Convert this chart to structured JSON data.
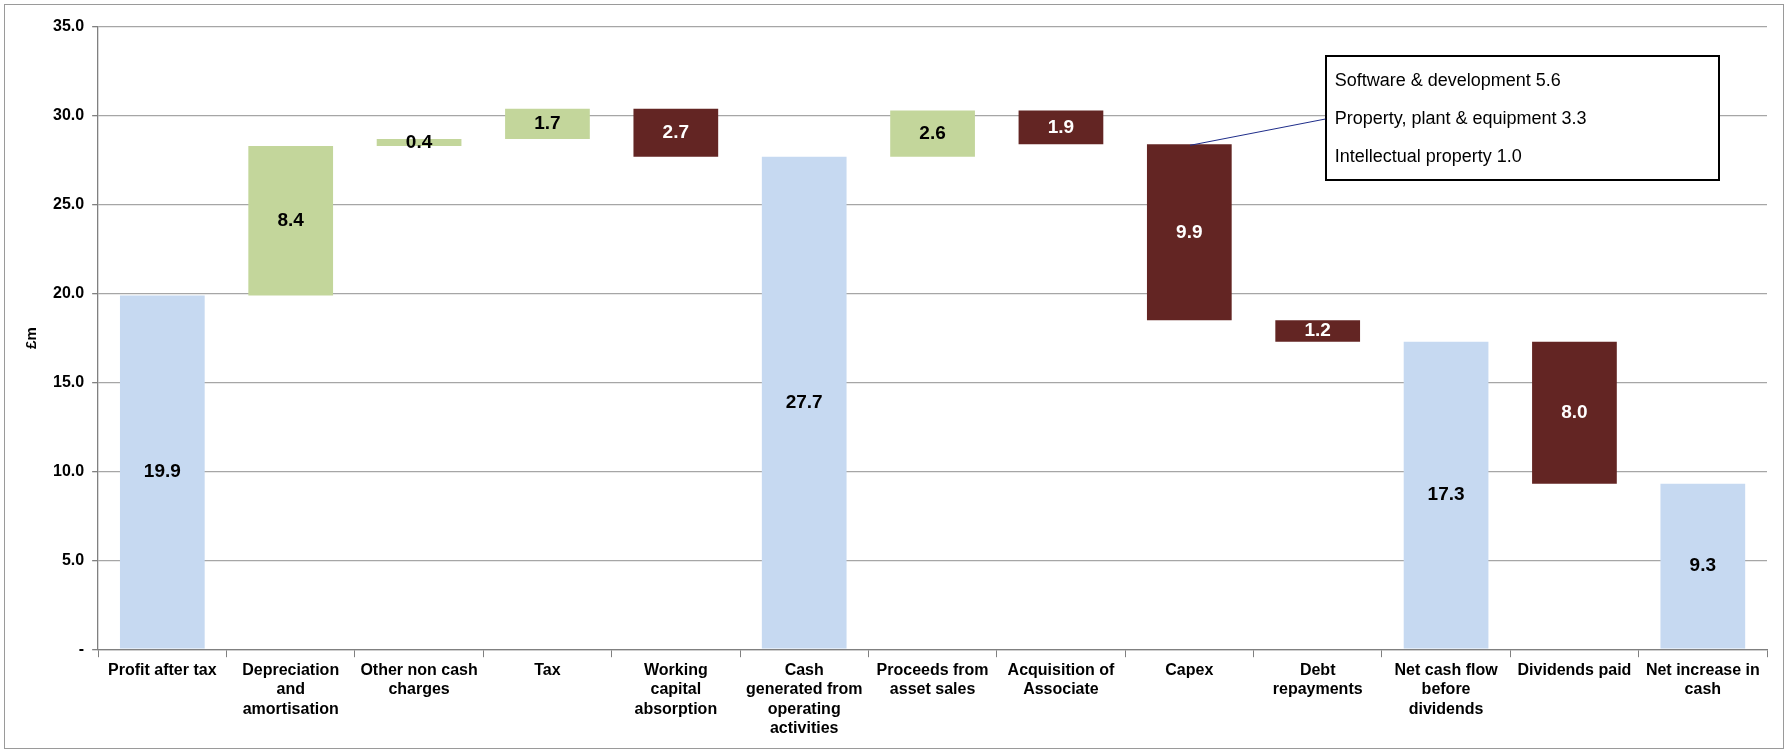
{
  "chart_data": {
    "type": "bar",
    "ylabel": "£m",
    "categories": [
      "Profit after tax",
      "Depreciation and amortisation",
      "Other non cash charges",
      "Tax",
      "Working capital absorption",
      "Cash generated from operating activities",
      "Proceeds from asset sales",
      "Acquisition of Associate",
      "Capex",
      "Debt repayments",
      "Net cash flow before dividends",
      "Dividends paid",
      "Net increase in cash"
    ],
    "values": [
      19.9,
      8.4,
      0.4,
      1.7,
      2.7,
      27.7,
      2.6,
      1.9,
      9.9,
      1.2,
      17.3,
      8.0,
      9.3
    ],
    "base": [
      0,
      19.9,
      28.3,
      28.7,
      27.7,
      0,
      27.7,
      28.4,
      18.5,
      17.3,
      0,
      9.3,
      0
    ],
    "colors": [
      "#c6d9f1",
      "#c3d69b",
      "#c3d69b",
      "#c3d69b",
      "#632523",
      "#c6d9f1",
      "#c3d69b",
      "#632523",
      "#632523",
      "#632523",
      "#c6d9f1",
      "#632523",
      "#c6d9f1"
    ],
    "value_labels": [
      "19.9",
      "8.4",
      "0.4",
      "1.7",
      "2.7",
      "27.7",
      "2.6",
      "1.9",
      "9.9",
      "1.2",
      "17.3",
      "8.0",
      "9.3"
    ],
    "ylim": [
      0,
      35
    ],
    "yticks": [
      {
        "value": 0,
        "label": "-"
      },
      {
        "value": 5,
        "label": "5.0"
      },
      {
        "value": 10,
        "label": "10.0"
      },
      {
        "value": 15,
        "label": "15.0"
      },
      {
        "value": 20,
        "label": "20.0"
      },
      {
        "value": 25,
        "label": "25.0"
      },
      {
        "value": 30,
        "label": "30.0"
      },
      {
        "value": 35,
        "label": "35.0"
      }
    ],
    "grid": "y",
    "legend": false,
    "annotations": [
      "Software & development 5.6",
      {
        "text": "Property, plant & equipment 3.3",
        "x": "Capex",
        "y": 28.4
      },
      "Intellectual property 1.0"
    ]
  }
}
